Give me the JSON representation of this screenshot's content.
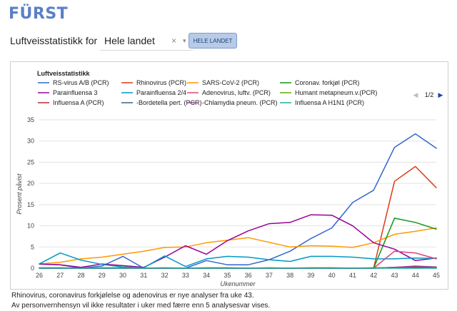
{
  "header": {
    "logo_text": "FÜRST",
    "colors": {
      "logo": "#5a7fc8",
      "button": "#b7cbe8"
    }
  },
  "controls": {
    "for_label": "Luftveisstatistikk for",
    "region_value": "Hele landet",
    "clear_glyph": "×",
    "caret_glyph": "▾",
    "all_button_label": "HELE LANDET"
  },
  "chart_data": {
    "type": "line",
    "title": "Luftveisstatistikk",
    "xlabel": "Ukenummer",
    "ylabel": "Prosent påvist",
    "categories": [
      "26",
      "27",
      "28",
      "29",
      "30",
      "31",
      "32",
      "33",
      "34",
      "35",
      "36",
      "37",
      "38",
      "39",
      "40",
      "41",
      "42",
      "43",
      "44",
      "45"
    ],
    "yticks": [
      0,
      5,
      10,
      15,
      20,
      25,
      30,
      35
    ],
    "ylim": [
      0,
      35
    ],
    "grid": "horizontal",
    "legend_position": "top",
    "legend_page": "1/2",
    "legend_prev_glyph": "◀",
    "legend_next_glyph": "▶",
    "series": [
      {
        "name": "RS-virus A/B (PCR)",
        "color": "#3366cc",
        "values": [
          1,
          0.8,
          0,
          0.5,
          2.8,
          0,
          0,
          0,
          1.8,
          0.8,
          0.8,
          2,
          4,
          7,
          9.5,
          15.5,
          18.4,
          28.5,
          31.7,
          28.3
        ]
      },
      {
        "name": "Rhinovirus (PCR)",
        "color": "#dc3912",
        "values": [
          null,
          null,
          null,
          null,
          null,
          null,
          null,
          null,
          null,
          null,
          null,
          null,
          null,
          null,
          null,
          null,
          0,
          20.5,
          24,
          19
        ]
      },
      {
        "name": "SARS-CoV-2 (PCR)",
        "color": "#ff9900",
        "values": [
          1,
          1.4,
          2.2,
          2.6,
          3.3,
          4,
          4.9,
          5,
          6,
          6.6,
          7.2,
          6.1,
          5,
          5.3,
          5.2,
          4.9,
          6,
          8,
          8.7,
          9.5
        ]
      },
      {
        "name": "Coronav. forkjøl (PCR)",
        "color": "#109618",
        "values": [
          null,
          null,
          null,
          null,
          null,
          null,
          null,
          null,
          null,
          null,
          null,
          null,
          null,
          null,
          null,
          null,
          0,
          11.8,
          10.8,
          9.2
        ]
      },
      {
        "name": "Parainfluensa 3",
        "color": "#990099",
        "values": [
          1,
          0.8,
          0.2,
          1,
          0.6,
          0.2,
          2.6,
          5.3,
          3.3,
          6.5,
          8.8,
          10.5,
          10.8,
          12.6,
          12.5,
          10,
          6,
          4.5,
          1.8,
          2.4
        ]
      },
      {
        "name": "Parainfluensa 2/4",
        "color": "#0099c6",
        "values": [
          1,
          3.6,
          1.9,
          0.9,
          0.3,
          0.1,
          2.9,
          0.4,
          2.2,
          2.8,
          2.6,
          2,
          1.6,
          2.8,
          2.8,
          2.6,
          2.2,
          2.2,
          2.4,
          2.3
        ]
      },
      {
        "name": "Adenovirus, luftv. (PCR)",
        "color": "#dd4477",
        "values": [
          null,
          null,
          null,
          null,
          null,
          null,
          null,
          null,
          null,
          null,
          null,
          null,
          null,
          null,
          null,
          null,
          0,
          4,
          3.6,
          2.2
        ]
      },
      {
        "name": "Humant metapneum.v.(PCR)",
        "color": "#66aa00",
        "values": [
          0.1,
          0.1,
          0,
          0.1,
          0.1,
          0,
          0.1,
          0,
          0.1,
          0.1,
          0,
          0.1,
          0,
          0.1,
          0.1,
          0,
          0.1,
          0.1,
          0.3,
          0.2
        ]
      },
      {
        "name": "Influensa A (PCR)",
        "color": "#b82e2e",
        "values": [
          0,
          0,
          0,
          0,
          0,
          0,
          0,
          0,
          0,
          0,
          0,
          0,
          0,
          0,
          0,
          0,
          0,
          0.2,
          0.3,
          0.2
        ]
      },
      {
        "name": "-Bordetella pert. (PCR)",
        "color": "#316395",
        "values": [
          0,
          0,
          0,
          0,
          0,
          0,
          0,
          0,
          0,
          0,
          0,
          0,
          0,
          0,
          0,
          0,
          0,
          0.1,
          0.1,
          0.1
        ]
      },
      {
        "name": "-Chlamydia pneum. (PCR)",
        "color": "#994499",
        "values": [
          0,
          0,
          0,
          0,
          0,
          0,
          0,
          0,
          0,
          0,
          0,
          0,
          0,
          0,
          0,
          0,
          0,
          0.2,
          0.5,
          0.3
        ]
      },
      {
        "name": "Influensa A H1N1 (PCR)",
        "color": "#22aa99",
        "values": [
          0,
          0,
          0,
          0,
          0,
          0,
          0,
          0,
          0,
          0,
          0,
          0,
          0,
          0,
          0,
          0,
          0,
          0,
          0,
          0
        ]
      }
    ]
  },
  "notes": [
    "Rhinovirus, coronavirus forkjølelse og adenovirus er nye analyser fra uke 43.",
    "Av personvernhensyn vil ikke resultater i uker med færre enn 5 analysesvar vises."
  ]
}
